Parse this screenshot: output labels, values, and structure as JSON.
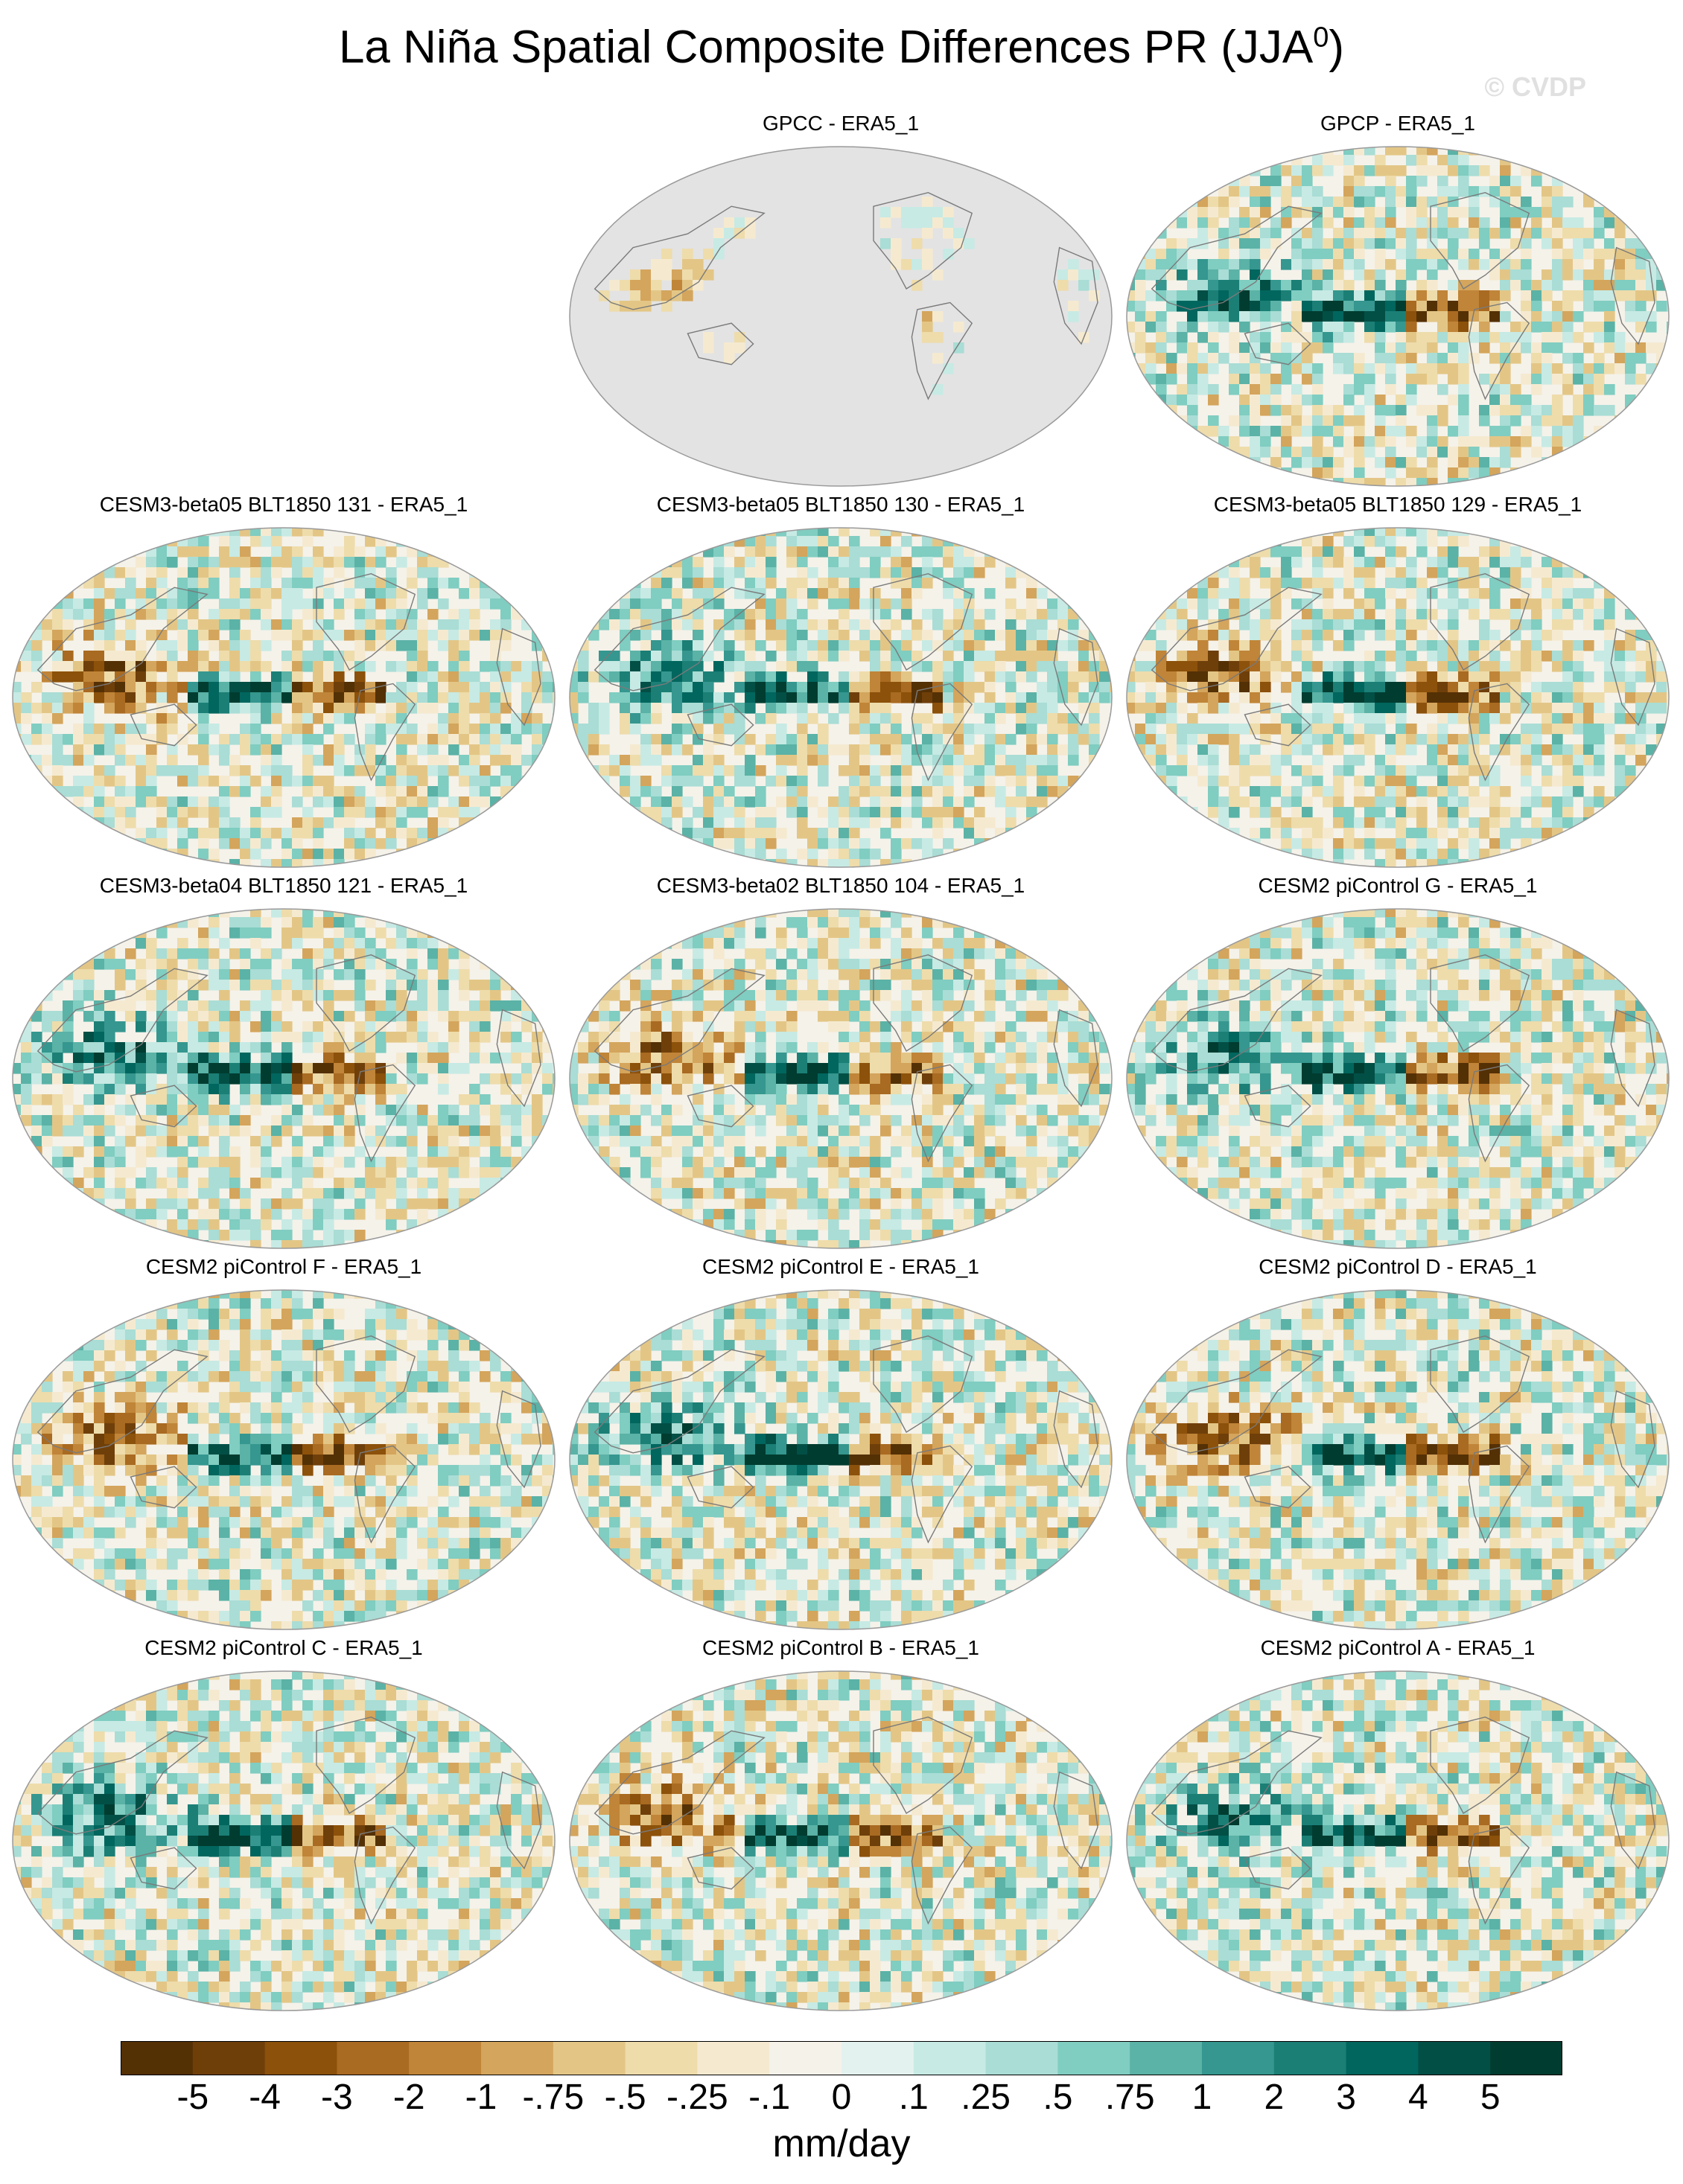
{
  "title_main": "La Niña Spatial Composite Differences PR (JJA",
  "title_sup": "0",
  "title_end": ")",
  "copyright": "© CVDP",
  "chart_data": {
    "type": "heatmap",
    "title": "La Niña Spatial Composite Differences PR (JJA0)",
    "units": "mm/day",
    "colorbar": {
      "labels": [
        "-5",
        "-4",
        "-3",
        "-2",
        "-1",
        "-.75",
        "-.5",
        "-.25",
        "-.1",
        "0",
        ".1",
        ".25",
        ".5",
        ".75",
        "1",
        "2",
        "3",
        "4",
        "5"
      ],
      "colors": [
        "#543005",
        "#6f3f0a",
        "#8c510a",
        "#a96a21",
        "#c08538",
        "#d4a55c",
        "#e3c686",
        "#eedcab",
        "#f5ead0",
        "#f5f2ea",
        "#e4f2ef",
        "#c7eae4",
        "#a9ddd5",
        "#80cdc1",
        "#5bb2a6",
        "#35978f",
        "#1b7f76",
        "#01665e",
        "#024f46",
        "#003c30"
      ]
    },
    "panels": [
      {
        "label": "GPCC - ERA5_1",
        "land_only": true
      },
      {
        "label": "GPCP - ERA5_1",
        "land_only": false
      },
      {
        "label": "CESM3-beta05 BLT1850 131 - ERA5_1",
        "land_only": false
      },
      {
        "label": "CESM3-beta05 BLT1850 130 - ERA5_1",
        "land_only": false
      },
      {
        "label": "CESM3-beta05 BLT1850 129 - ERA5_1",
        "land_only": false
      },
      {
        "label": "CESM3-beta04 BLT1850 121 - ERA5_1",
        "land_only": false
      },
      {
        "label": "CESM3-beta02 BLT1850 104 - ERA5_1",
        "land_only": false
      },
      {
        "label": "CESM2 piControl G - ERA5_1",
        "land_only": false
      },
      {
        "label": "CESM2 piControl F - ERA5_1",
        "land_only": false
      },
      {
        "label": "CESM2 piControl E - ERA5_1",
        "land_only": false
      },
      {
        "label": "CESM2 piControl D - ERA5_1",
        "land_only": false
      },
      {
        "label": "CESM2 piControl C - ERA5_1",
        "land_only": false
      },
      {
        "label": "CESM2 piControl B - ERA5_1",
        "land_only": false
      },
      {
        "label": "CESM2 piControl A - ERA5_1",
        "land_only": false
      }
    ]
  }
}
